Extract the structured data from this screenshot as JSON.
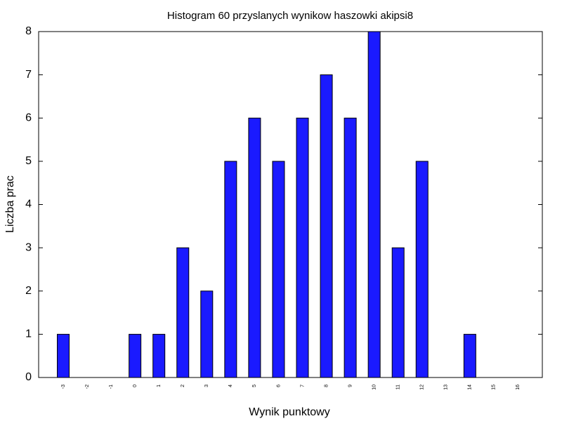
{
  "chart_data": {
    "type": "bar",
    "title": "Histogram 60 przyslanych wynikow haszowki akipsi8",
    "xlabel": "Wynik punktowy",
    "ylabel": "Liczba prac",
    "categories": [
      "-3",
      "-2",
      "-1",
      "0",
      "1",
      "2",
      "3",
      "4",
      "5",
      "6",
      "7",
      "8",
      "9",
      "10",
      "11",
      "12",
      "13",
      "14",
      "15",
      "16"
    ],
    "values": [
      1,
      0,
      0,
      1,
      1,
      3,
      2,
      5,
      6,
      5,
      6,
      7,
      6,
      8,
      3,
      5,
      0,
      1,
      0,
      0
    ],
    "ylim": [
      0,
      8
    ],
    "yticks": [
      "0",
      "1",
      "2",
      "3",
      "4",
      "5",
      "6",
      "7",
      "8"
    ],
    "grid": false,
    "bar_color": "#1a1aff",
    "bar_edge_color": "#000000"
  }
}
